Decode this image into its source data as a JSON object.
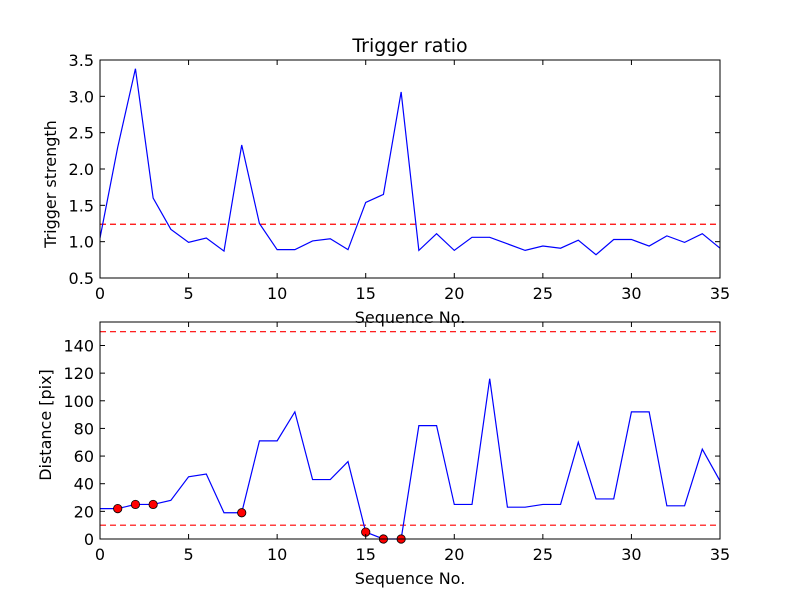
{
  "chart_data": [
    {
      "type": "line",
      "title": "Trigger ratio",
      "xlabel": "Sequence No.",
      "ylabel": "Trigger strength",
      "xlim": [
        0,
        35
      ],
      "ylim": [
        0.5,
        3.5
      ],
      "xticks": [
        0,
        5,
        10,
        15,
        20,
        25,
        30,
        35
      ],
      "yticks": [
        "0.5",
        "1.0",
        "1.5",
        "2.0",
        "2.5",
        "3.0",
        "3.5"
      ],
      "line_color": "#0000ff",
      "threshold_color": "#ff0000",
      "thresholds": [
        1.24
      ],
      "x": [
        0,
        1,
        2,
        3,
        4,
        5,
        6,
        7,
        8,
        9,
        10,
        11,
        12,
        13,
        14,
        15,
        16,
        17,
        18,
        19,
        20,
        21,
        22,
        23,
        24,
        25,
        26,
        27,
        28,
        29,
        30,
        31,
        32,
        33,
        34,
        35
      ],
      "y": [
        1.05,
        2.3,
        3.38,
        1.6,
        1.17,
        0.99,
        1.05,
        0.87,
        2.33,
        1.25,
        0.89,
        0.89,
        1.01,
        1.04,
        0.89,
        1.54,
        1.65,
        3.06,
        0.88,
        1.11,
        0.88,
        1.06,
        1.06,
        0.97,
        0.88,
        0.94,
        0.91,
        1.02,
        0.82,
        1.03,
        1.03,
        0.94,
        1.08,
        0.99,
        1.11,
        0.91
      ]
    },
    {
      "type": "line",
      "title": "",
      "xlabel": "Sequence No.",
      "ylabel": "Distance [pix]",
      "xlim": [
        0,
        35
      ],
      "ylim": [
        0,
        157
      ],
      "xticks": [
        0,
        5,
        10,
        15,
        20,
        25,
        30,
        35
      ],
      "yticks": [
        "0",
        "20",
        "40",
        "60",
        "80",
        "100",
        "120",
        "140"
      ],
      "line_color": "#0000ff",
      "threshold_color": "#ff0000",
      "marker_color": "#ff0000",
      "thresholds": [
        150,
        10
      ],
      "x": [
        0,
        1,
        2,
        3,
        4,
        5,
        6,
        7,
        8,
        9,
        10,
        11,
        12,
        13,
        14,
        15,
        16,
        17,
        18,
        19,
        20,
        21,
        22,
        23,
        24,
        25,
        26,
        27,
        28,
        29,
        30,
        31,
        32,
        33,
        34,
        35
      ],
      "y": [
        22,
        22,
        25,
        25,
        28,
        45,
        47,
        19,
        19,
        71,
        71,
        92,
        43,
        43,
        56,
        5,
        0,
        0,
        82,
        82,
        25,
        25,
        116,
        23,
        23,
        25,
        25,
        70,
        29,
        29,
        92,
        92,
        24,
        24,
        65,
        42
      ],
      "markers": {
        "x": [
          1,
          2,
          3,
          8,
          15,
          16,
          17
        ],
        "y": [
          22,
          25,
          25,
          19,
          5,
          0,
          0
        ]
      }
    }
  ]
}
